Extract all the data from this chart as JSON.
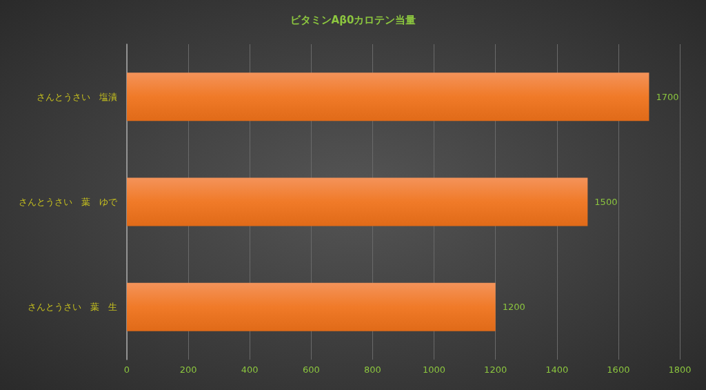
{
  "chart_data": {
    "type": "bar",
    "orientation": "horizontal",
    "title": "ビタミンAβ0カロテン当量",
    "categories": [
      "さんとうさい　塩漬",
      "さんとうさい　葉　ゆで",
      "さんとうさい　葉　生"
    ],
    "values": [
      1700,
      1500,
      1200
    ],
    "color": "#f07a28",
    "xlim": [
      0,
      1800
    ],
    "xticks": [
      0,
      200,
      400,
      600,
      800,
      1000,
      1200,
      1400,
      1600,
      1800
    ],
    "grid": "x",
    "data_labels": true
  }
}
